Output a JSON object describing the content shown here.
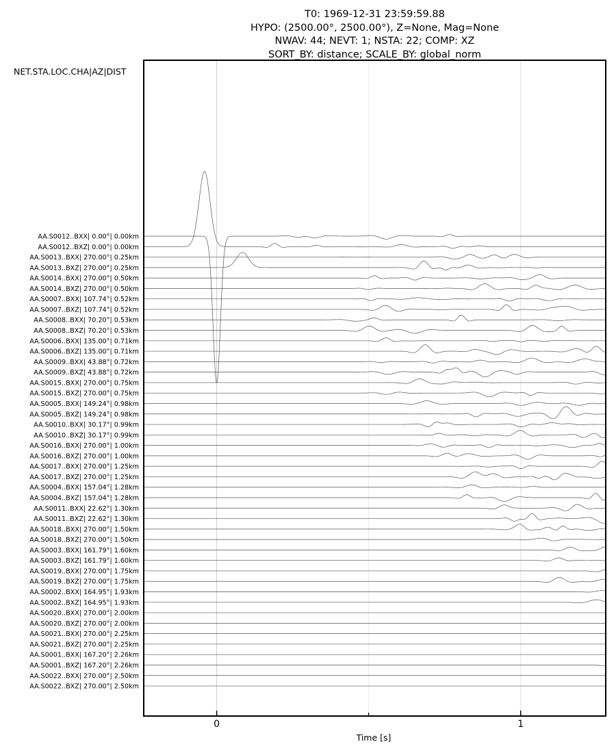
{
  "title_lines": [
    "T0: 1969-12-31 23:59:59.88",
    "HYPO: (2500.00°, 2500.00°), Z=None, Mag=None",
    "NWAV: 44; NEVT: 1; NSTA: 22; COMP: XZ",
    "SORT_BY: distance; SCALE_BY: global_norm"
  ],
  "header_label": "NET.STA.LOC.CHA|AZ|DIST",
  "chart_data": {
    "type": "line",
    "title": "T0: 1969-12-31 23:59:59.88 | HYPO: (2500.00°, 2500.00°), Z=None, Mag=None | NWAV: 44; NEVT: 1; NSTA: 22; COMP: XZ | SORT_BY: distance; SCALE_BY: global_norm",
    "xlabel": "Time [s]",
    "ylabel": "",
    "xlim": [
      -0.24,
      1.28
    ],
    "xticks": [
      0,
      1
    ],
    "xticks_minor": [
      0.5,
      1.0
    ],
    "x_tick_labels": [
      "0",
      "1"
    ],
    "grid": true,
    "wave_speed_km_per_s": 2.0,
    "traces": [
      {
        "label": "AA.S0012..BXX|   0.00°|  0.00km",
        "net": "AA",
        "sta": "S0012",
        "cha": "BXX",
        "az": 0.0,
        "dist_km": 0.0
      },
      {
        "label": "AA.S0012..BXZ|   0.00°|  0.00km",
        "net": "AA",
        "sta": "S0012",
        "cha": "BXZ",
        "az": 0.0,
        "dist_km": 0.0
      },
      {
        "label": "AA.S0013..BXX| 270.00°|  0.25km",
        "net": "AA",
        "sta": "S0013",
        "cha": "BXX",
        "az": 270.0,
        "dist_km": 0.25
      },
      {
        "label": "AA.S0013..BXZ| 270.00°|  0.25km",
        "net": "AA",
        "sta": "S0013",
        "cha": "BXZ",
        "az": 270.0,
        "dist_km": 0.25
      },
      {
        "label": "AA.S0014..BXX| 270.00°|  0.50km",
        "net": "AA",
        "sta": "S0014",
        "cha": "BXX",
        "az": 270.0,
        "dist_km": 0.5
      },
      {
        "label": "AA.S0014..BXZ| 270.00°|  0.50km",
        "net": "AA",
        "sta": "S0014",
        "cha": "BXZ",
        "az": 270.0,
        "dist_km": 0.5
      },
      {
        "label": "AA.S0007..BXX| 107.74°|  0.52km",
        "net": "AA",
        "sta": "S0007",
        "cha": "BXX",
        "az": 107.74,
        "dist_km": 0.52
      },
      {
        "label": "AA.S0007..BXZ| 107.74°|  0.52km",
        "net": "AA",
        "sta": "S0007",
        "cha": "BXZ",
        "az": 107.74,
        "dist_km": 0.52
      },
      {
        "label": "AA.S0008..BXX|  70.20°|  0.53km",
        "net": "AA",
        "sta": "S0008",
        "cha": "BXX",
        "az": 70.2,
        "dist_km": 0.53
      },
      {
        "label": "AA.S0008..BXZ|  70.20°|  0.53km",
        "net": "AA",
        "sta": "S0008",
        "cha": "BXZ",
        "az": 70.2,
        "dist_km": 0.53
      },
      {
        "label": "AA.S0006..BXX| 135.00°|  0.71km",
        "net": "AA",
        "sta": "S0006",
        "cha": "BXX",
        "az": 135.0,
        "dist_km": 0.71
      },
      {
        "label": "AA.S0006..BXZ| 135.00°|  0.71km",
        "net": "AA",
        "sta": "S0006",
        "cha": "BXZ",
        "az": 135.0,
        "dist_km": 0.71
      },
      {
        "label": "AA.S0009..BXX|  43.88°|  0.72km",
        "net": "AA",
        "sta": "S0009",
        "cha": "BXX",
        "az": 43.88,
        "dist_km": 0.72
      },
      {
        "label": "AA.S0009..BXZ|  43.88°|  0.72km",
        "net": "AA",
        "sta": "S0009",
        "cha": "BXZ",
        "az": 43.88,
        "dist_km": 0.72
      },
      {
        "label": "AA.S0015..BXX| 270.00°|  0.75km",
        "net": "AA",
        "sta": "S0015",
        "cha": "BXX",
        "az": 270.0,
        "dist_km": 0.75
      },
      {
        "label": "AA.S0015..BXZ| 270.00°|  0.75km",
        "net": "AA",
        "sta": "S0015",
        "cha": "BXZ",
        "az": 270.0,
        "dist_km": 0.75
      },
      {
        "label": "AA.S0005..BXX| 149.24°|  0.98km",
        "net": "AA",
        "sta": "S0005",
        "cha": "BXX",
        "az": 149.24,
        "dist_km": 0.98
      },
      {
        "label": "AA.S0005..BXZ| 149.24°|  0.98km",
        "net": "AA",
        "sta": "S0005",
        "cha": "BXZ",
        "az": 149.24,
        "dist_km": 0.98
      },
      {
        "label": "AA.S0010..BXX|  30.17°|  0.99km",
        "net": "AA",
        "sta": "S0010",
        "cha": "BXX",
        "az": 30.17,
        "dist_km": 0.99
      },
      {
        "label": "AA.S0010..BXZ|  30.17°|  0.99km",
        "net": "AA",
        "sta": "S0010",
        "cha": "BXZ",
        "az": 30.17,
        "dist_km": 0.99
      },
      {
        "label": "AA.S0016..BXX| 270.00°|  1.00km",
        "net": "AA",
        "sta": "S0016",
        "cha": "BXX",
        "az": 270.0,
        "dist_km": 1.0
      },
      {
        "label": "AA.S0016..BXZ| 270.00°|  1.00km",
        "net": "AA",
        "sta": "S0016",
        "cha": "BXZ",
        "az": 270.0,
        "dist_km": 1.0
      },
      {
        "label": "AA.S0017..BXX| 270.00°|  1.25km",
        "net": "AA",
        "sta": "S0017",
        "cha": "BXX",
        "az": 270.0,
        "dist_km": 1.25
      },
      {
        "label": "AA.S0017..BXZ| 270.00°|  1.25km",
        "net": "AA",
        "sta": "S0017",
        "cha": "BXZ",
        "az": 270.0,
        "dist_km": 1.25
      },
      {
        "label": "AA.S0004..BXX| 157.04°|  1.28km",
        "net": "AA",
        "sta": "S0004",
        "cha": "BXX",
        "az": 157.04,
        "dist_km": 1.28
      },
      {
        "label": "AA.S0004..BXZ| 157.04°|  1.28km",
        "net": "AA",
        "sta": "S0004",
        "cha": "BXZ",
        "az": 157.04,
        "dist_km": 1.28
      },
      {
        "label": "AA.S0011..BXX|  22.62°|  1.30km",
        "net": "AA",
        "sta": "S0011",
        "cha": "BXX",
        "az": 22.62,
        "dist_km": 1.3
      },
      {
        "label": "AA.S0011..BXZ|  22.62°|  1.30km",
        "net": "AA",
        "sta": "S0011",
        "cha": "BXZ",
        "az": 22.62,
        "dist_km": 1.3
      },
      {
        "label": "AA.S0018..BXX| 270.00°|  1.50km",
        "net": "AA",
        "sta": "S0018",
        "cha": "BXX",
        "az": 270.0,
        "dist_km": 1.5
      },
      {
        "label": "AA.S0018..BXZ| 270.00°|  1.50km",
        "net": "AA",
        "sta": "S0018",
        "cha": "BXZ",
        "az": 270.0,
        "dist_km": 1.5
      },
      {
        "label": "AA.S0003..BXX| 161.79°|  1.60km",
        "net": "AA",
        "sta": "S0003",
        "cha": "BXX",
        "az": 161.79,
        "dist_km": 1.6
      },
      {
        "label": "AA.S0003..BXZ| 161.79°|  1.60km",
        "net": "AA",
        "sta": "S0003",
        "cha": "BXZ",
        "az": 161.79,
        "dist_km": 1.6
      },
      {
        "label": "AA.S0019..BXX| 270.00°|  1.75km",
        "net": "AA",
        "sta": "S0019",
        "cha": "BXX",
        "az": 270.0,
        "dist_km": 1.75
      },
      {
        "label": "AA.S0019..BXZ| 270.00°|  1.75km",
        "net": "AA",
        "sta": "S0019",
        "cha": "BXZ",
        "az": 270.0,
        "dist_km": 1.75
      },
      {
        "label": "AA.S0002..BXX| 164.95°|  1.93km",
        "net": "AA",
        "sta": "S0002",
        "cha": "BXX",
        "az": 164.95,
        "dist_km": 1.93
      },
      {
        "label": "AA.S0002..BXZ| 164.95°|  1.93km",
        "net": "AA",
        "sta": "S0002",
        "cha": "BXZ",
        "az": 164.95,
        "dist_km": 1.93
      },
      {
        "label": "AA.S0020..BXX| 270.00°|  2.00km",
        "net": "AA",
        "sta": "S0020",
        "cha": "BXX",
        "az": 270.0,
        "dist_km": 2.0
      },
      {
        "label": "AA.S0020..BXZ| 270.00°|  2.00km",
        "net": "AA",
        "sta": "S0020",
        "cha": "BXZ",
        "az": 270.0,
        "dist_km": 2.0
      },
      {
        "label": "AA.S0021..BXX| 270.00°|  2.25km",
        "net": "AA",
        "sta": "S0021",
        "cha": "BXX",
        "az": 270.0,
        "dist_km": 2.25
      },
      {
        "label": "AA.S0021..BXZ| 270.00°|  2.25km",
        "net": "AA",
        "sta": "S0021",
        "cha": "BXZ",
        "az": 270.0,
        "dist_km": 2.25
      },
      {
        "label": "AA.S0001..BXX| 167.20°|  2.26km",
        "net": "AA",
        "sta": "S0001",
        "cha": "BXX",
        "az": 167.2,
        "dist_km": 2.26
      },
      {
        "label": "AA.S0001..BXZ| 167.20°|  2.26km",
        "net": "AA",
        "sta": "S0001",
        "cha": "BXZ",
        "az": 167.2,
        "dist_km": 2.26
      },
      {
        "label": "AA.S0022..BXX| 270.00°|  2.50km",
        "net": "AA",
        "sta": "S0022",
        "cha": "BXX",
        "az": 270.0,
        "dist_km": 2.5
      },
      {
        "label": "AA.S0022..BXZ| 270.00°|  2.50km",
        "net": "AA",
        "sta": "S0022",
        "cha": "BXZ",
        "az": 270.0,
        "dist_km": 2.5
      }
    ]
  }
}
